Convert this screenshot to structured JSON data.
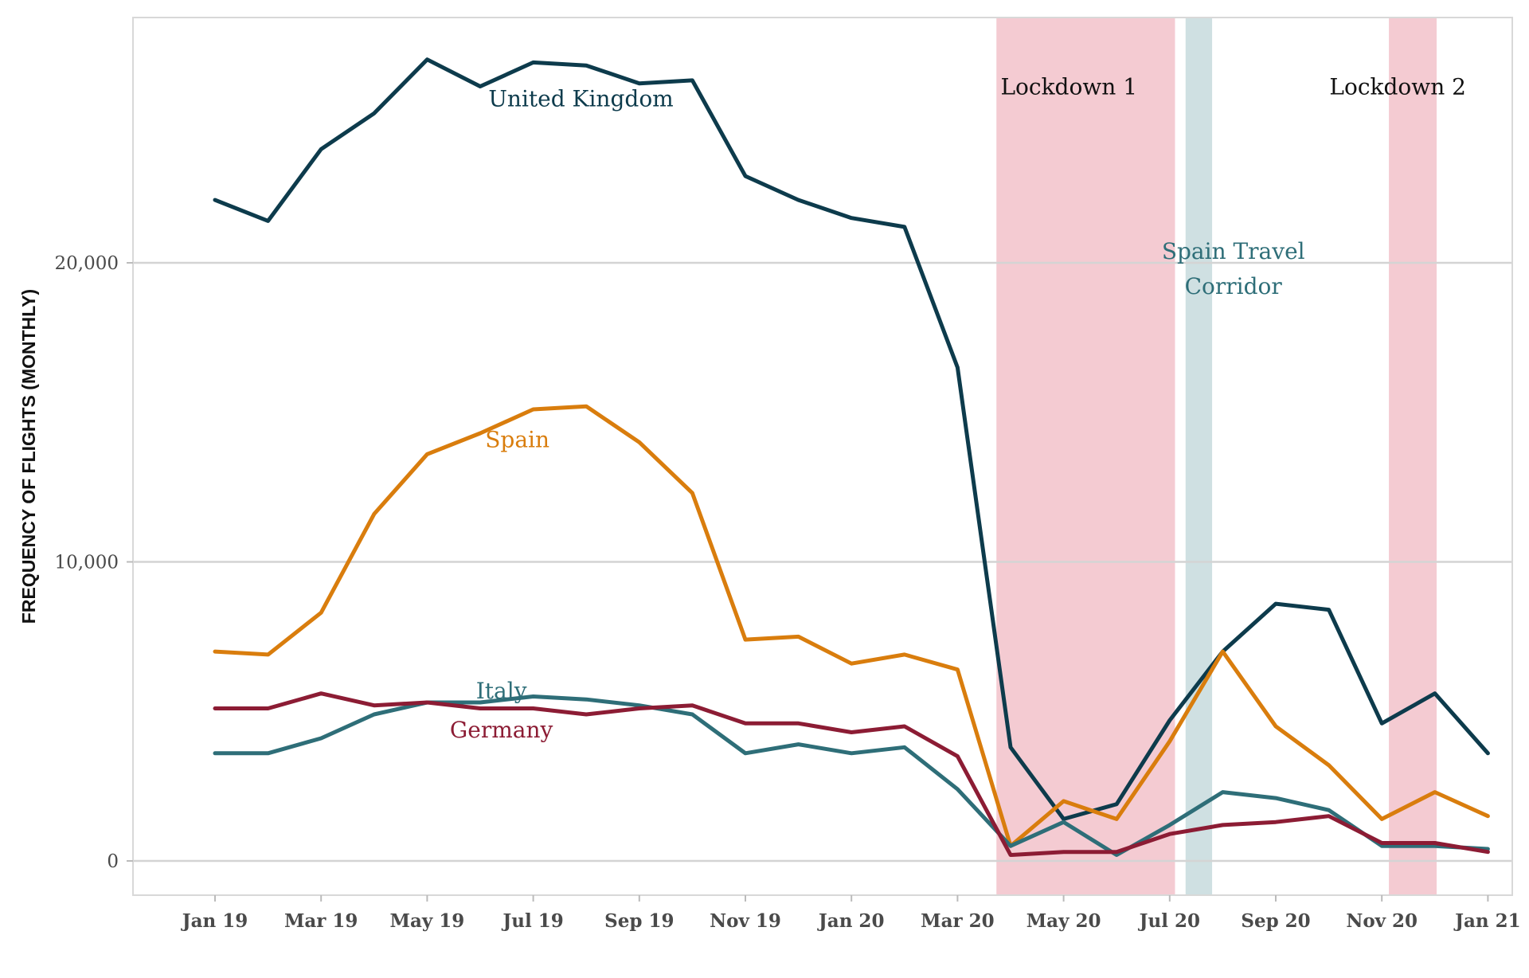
{
  "chart_data": {
    "type": "line",
    "ylabel": "FREQUENCY OF FLIGHTS (MONTHLY)",
    "ylim": [
      -1000,
      28500
    ],
    "y_ticks": [
      0,
      10000,
      20000
    ],
    "y_tick_labels": [
      "0",
      "10,000",
      "20,000"
    ],
    "grid": "horizontal",
    "x": [
      "2019-01",
      "2019-02",
      "2019-03",
      "2019-04",
      "2019-05",
      "2019-06",
      "2019-07",
      "2019-08",
      "2019-09",
      "2019-10",
      "2019-11",
      "2019-12",
      "2020-01",
      "2020-02",
      "2020-03",
      "2020-04",
      "2020-05",
      "2020-06",
      "2020-07",
      "2020-08",
      "2020-09",
      "2020-10",
      "2020-11",
      "2020-12",
      "2021-01"
    ],
    "x_tick_labels": [
      "Jan 19",
      "Mar 19",
      "May 19",
      "Jul 19",
      "Sep 19",
      "Nov 19",
      "Jan 20",
      "Mar 20",
      "May 20",
      "Jul 20",
      "Sep 20",
      "Nov 20",
      "Jan 21"
    ],
    "series": [
      {
        "name": "United Kingdom",
        "color": "#0d3b4c",
        "values": [
          22100,
          21400,
          23800,
          25000,
          26800,
          25900,
          26700,
          26600,
          26000,
          26100,
          22900,
          22100,
          21500,
          21200,
          16500,
          3800,
          1400,
          1900,
          4700,
          7000,
          8600,
          8400,
          4600,
          5600,
          3600
        ]
      },
      {
        "name": "Spain",
        "color": "#d97d0d",
        "values": [
          7000,
          6900,
          8300,
          11600,
          13600,
          14300,
          15100,
          15200,
          14000,
          12300,
          7400,
          7500,
          6600,
          6900,
          6400,
          500,
          2000,
          1400,
          4000,
          7000,
          4500,
          3200,
          1400,
          2300,
          1500
        ]
      },
      {
        "name": "Italy",
        "color": "#2e6e78",
        "values": [
          3600,
          3600,
          4100,
          4900,
          5300,
          5300,
          5500,
          5400,
          5200,
          4900,
          3600,
          3900,
          3600,
          3800,
          2400,
          500,
          1300,
          200,
          1200,
          2300,
          2100,
          1700,
          500,
          500,
          400
        ]
      },
      {
        "name": "Germany",
        "color": "#8c1c34",
        "values": [
          5100,
          5100,
          5600,
          5200,
          5300,
          5100,
          5100,
          4900,
          5100,
          5200,
          4600,
          4600,
          4300,
          4500,
          3500,
          200,
          300,
          300,
          900,
          1200,
          1300,
          1500,
          600,
          600,
          300
        ]
      }
    ],
    "shaded_periods": [
      {
        "label": "Lockdown 1",
        "start": "2020-03-23",
        "end": "2020-07-04",
        "color": "#f4cbd2"
      },
      {
        "label": "Spain Travel Corridor",
        "label_lines": [
          "Spain Travel",
          "Corridor"
        ],
        "start": "2020-07-10",
        "end": "2020-07-25",
        "color": "#cfe0e2"
      },
      {
        "label": "Lockdown 2",
        "start": "2020-11-05",
        "end": "2020-12-02",
        "color": "#f4cbd2"
      }
    ]
  }
}
